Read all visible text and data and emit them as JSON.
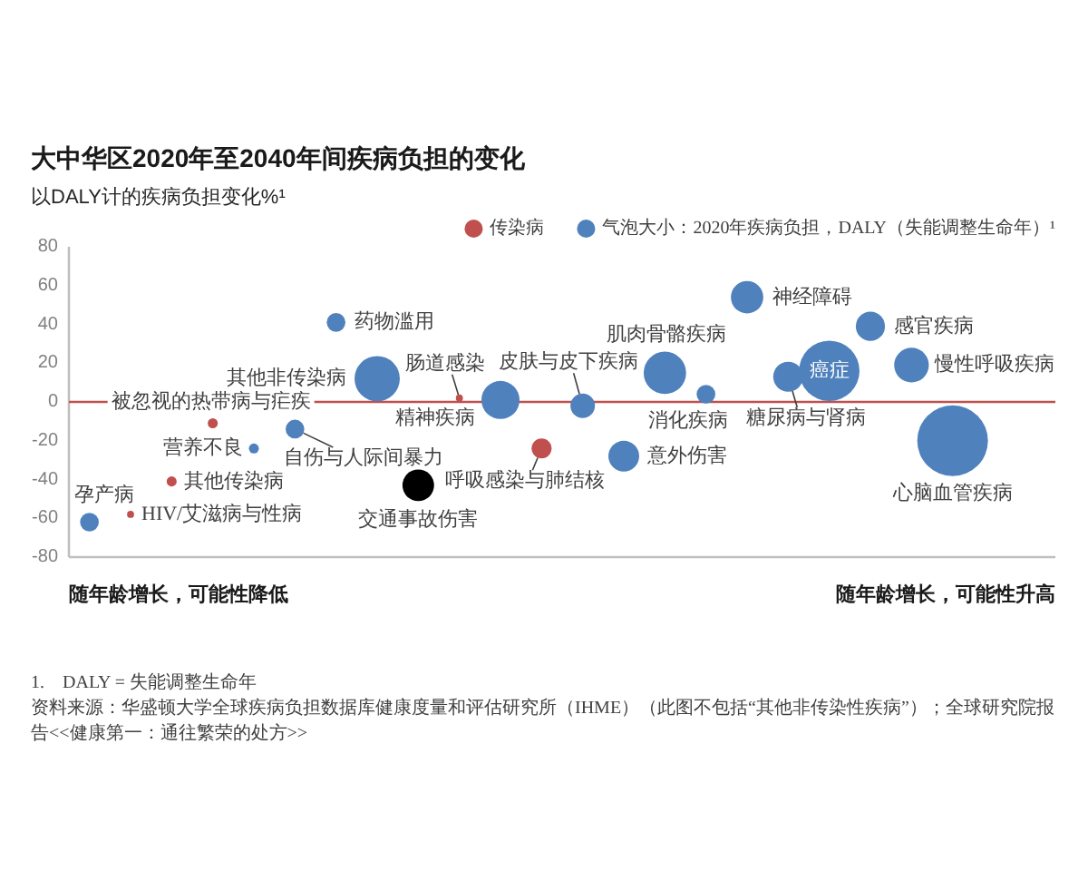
{
  "chart_data": {
    "type": "bubble",
    "title": "大中华区2020年至2040年间疾病负担的变化",
    "subtitle": "以DALY计的疾病负担变化%¹",
    "categories": [
      null,
      null,
      null,
      null,
      null,
      null,
      null,
      null,
      null,
      null,
      null,
      null,
      null,
      null,
      null,
      null,
      null,
      null,
      null,
      null,
      null,
      null,
      null,
      null
    ],
    "series": [
      {
        "name": "传染病",
        "color": "#c0504d",
        "values": [
          null,
          -58,
          -41,
          -11,
          null,
          null,
          null,
          null,
          null,
          2,
          null,
          -24,
          null,
          null,
          null,
          null,
          null,
          null,
          null,
          null,
          null,
          null,
          null,
          null
        ],
        "sizes": [
          null,
          0.01,
          0.02,
          0.02,
          null,
          null,
          null,
          null,
          null,
          0.01,
          null,
          0.08,
          null,
          null,
          null,
          null,
          null,
          null,
          null,
          null,
          null,
          null,
          null,
          null
        ],
        "value_labels": [
          null,
          "HIV/艾滋病与性病",
          "其他传染病",
          "被忽视的热带病与疟疾",
          null,
          null,
          null,
          null,
          null,
          "肠道感染",
          null,
          "呼吸感染与肺结核",
          null,
          null,
          null,
          null,
          null,
          null,
          null,
          null,
          null,
          null,
          null,
          null
        ]
      },
      {
        "name": "气泡大小：2020年疾病负担，DALY（失能调整生命年）¹",
        "color": "#4f81bd",
        "values": [
          -62,
          null,
          null,
          null,
          -24,
          -14,
          41,
          12,
          null,
          null,
          1,
          null,
          -2,
          -28,
          15,
          4,
          54,
          13,
          16,
          39,
          19,
          -20,
          null,
          null
        ],
        "sizes": [
          0.07,
          null,
          null,
          null,
          0.02,
          0.07,
          0.07,
          0.41,
          null,
          null,
          0.29,
          null,
          0.12,
          0.19,
          0.36,
          0.07,
          0.21,
          0.18,
          0.73,
          0.17,
          0.24,
          1,
          null,
          null
        ],
        "value_labels": [
          "孕产病",
          null,
          null,
          null,
          "营养不良",
          "自伤与人际间暴力",
          "药物滥用",
          "其他非传染病",
          null,
          null,
          "精神疾病",
          null,
          "皮肤与皮下疾病",
          "意外伤害",
          "肌肉骨骼疾病",
          "消化疾病",
          "神经障碍",
          "糖尿病与肾病",
          "癌症",
          "感官疾病",
          "慢性呼吸疾病",
          "心脑血管疾病",
          null,
          null
        ]
      },
      {
        "color": "#000000",
        "values": [
          null,
          null,
          null,
          null,
          null,
          null,
          null,
          null,
          -43,
          null,
          null,
          null,
          null,
          null,
          null,
          null,
          null,
          null,
          null,
          null,
          null,
          null,
          null,
          null
        ],
        "sizes": [
          null,
          null,
          null,
          null,
          null,
          null,
          null,
          null,
          0.2,
          null,
          null,
          null,
          null,
          null,
          null,
          null,
          null,
          null,
          null,
          null,
          null,
          null,
          null,
          null
        ],
        "value_labels": [
          null,
          null,
          null,
          null,
          null,
          null,
          null,
          null,
          "交通事故伤害",
          null,
          null,
          null,
          null,
          null,
          null,
          null,
          null,
          null,
          null,
          null,
          null,
          null,
          null,
          null
        ]
      }
    ],
    "ylim": [
      -80,
      80
    ],
    "yticks": [
      -80,
      -60,
      -40,
      -20,
      0,
      20,
      40,
      60,
      80
    ],
    "tick_labels": "y",
    "ref_lines": [
      {
        "axis": "y",
        "value": 0,
        "color": "#c0504d"
      }
    ],
    "legend": "top right",
    "annotations": [
      "随年龄增长，可能性降低",
      "随年龄增长，可能性升高",
      "1.    DALY = 失能调整生命年",
      "资料来源：华盛顿大学全球疾病负担数据库健康度量和评估研究所（IHME）（此图不包括“其他非传染性疾病”）；全球研究院报告<<健康第一：通往繁荣的处方>>"
    ]
  }
}
